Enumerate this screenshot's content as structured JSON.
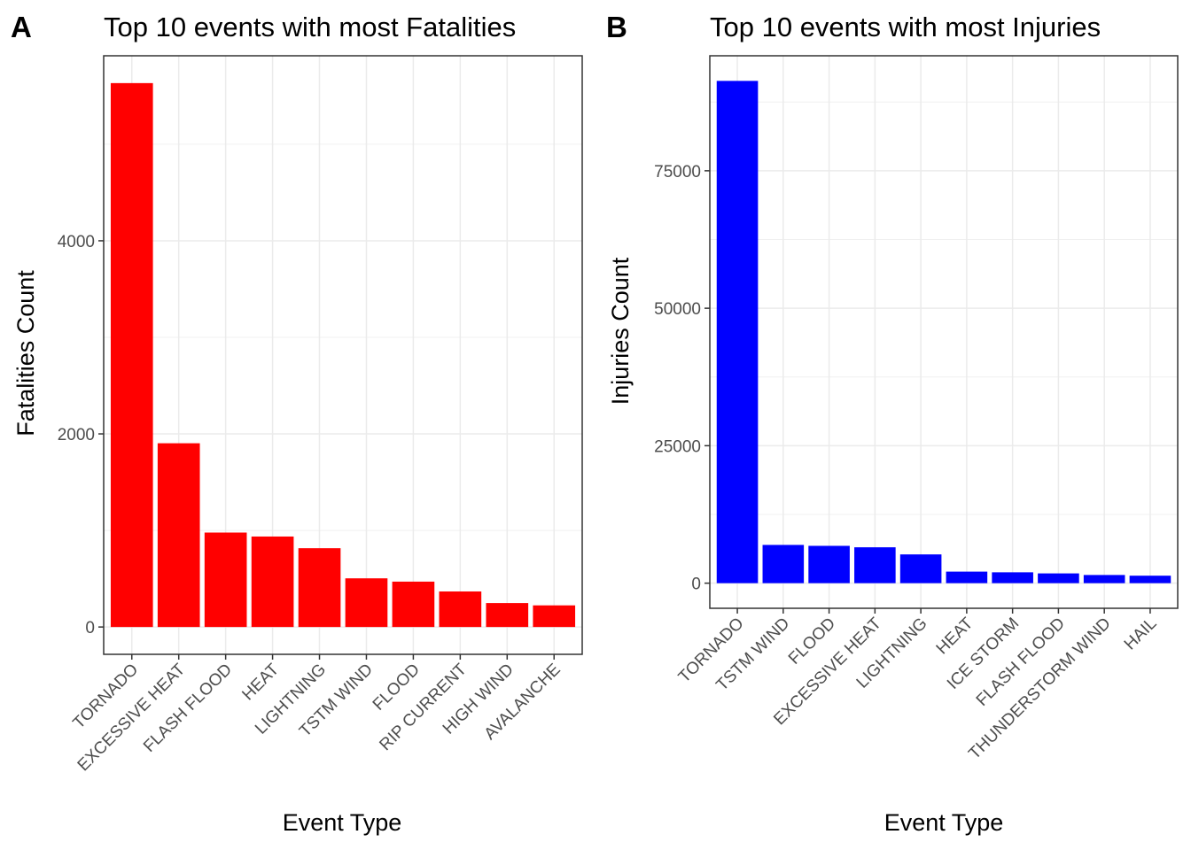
{
  "chart_data": [
    {
      "panel": "A",
      "type": "bar",
      "title": "Top 10 events with most Fatalities",
      "xlabel": "Event Type",
      "ylabel": "Fatalities Count",
      "categories": [
        "TORNADO",
        "EXCESSIVE HEAT",
        "FLASH FLOOD",
        "HEAT",
        "LIGHTNING",
        "TSTM WIND",
        "FLOOD",
        "RIP CURRENT",
        "HIGH WIND",
        "AVALANCHE"
      ],
      "values": [
        5633,
        1903,
        978,
        937,
        816,
        504,
        470,
        368,
        248,
        224
      ],
      "yticks": [
        0,
        2000,
        4000
      ],
      "ylim": [
        -283,
        5916
      ],
      "bar_color": "#ff0000",
      "grid": true,
      "legend": "none"
    },
    {
      "panel": "B",
      "type": "bar",
      "title": "Top 10 events with most Injuries",
      "xlabel": "Event Type",
      "ylabel": "Injuries Count",
      "categories": [
        "TORNADO",
        "TSTM WIND",
        "FLOOD",
        "EXCESSIVE HEAT",
        "LIGHTNING",
        "HEAT",
        "ICE STORM",
        "FLASH FLOOD",
        "THUNDERSTORM WIND",
        "HAIL"
      ],
      "values": [
        91346,
        6957,
        6789,
        6525,
        5230,
        2100,
        1975,
        1777,
        1488,
        1361
      ],
      "yticks": [
        0,
        25000,
        50000,
        75000
      ],
      "ylim": [
        -4567,
        95913
      ],
      "bar_color": "#0000ff",
      "grid": true,
      "legend": "none"
    }
  ]
}
